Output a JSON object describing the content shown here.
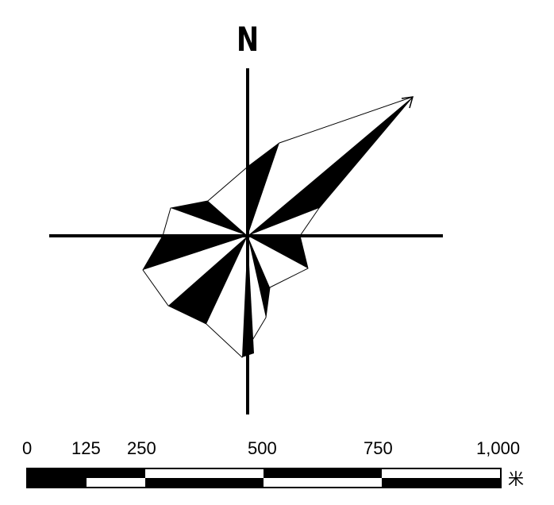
{
  "north_arrow": {
    "label": "N"
  },
  "scale_bar": {
    "ticks": [
      "0",
      "125",
      "250",
      "500",
      "750",
      "1,000"
    ],
    "unit": "米",
    "tick_values": [
      0,
      125,
      250,
      500,
      750,
      1000
    ],
    "max_value": 1000
  },
  "colors": {
    "ink": "#000000",
    "paper": "#ffffff"
  }
}
